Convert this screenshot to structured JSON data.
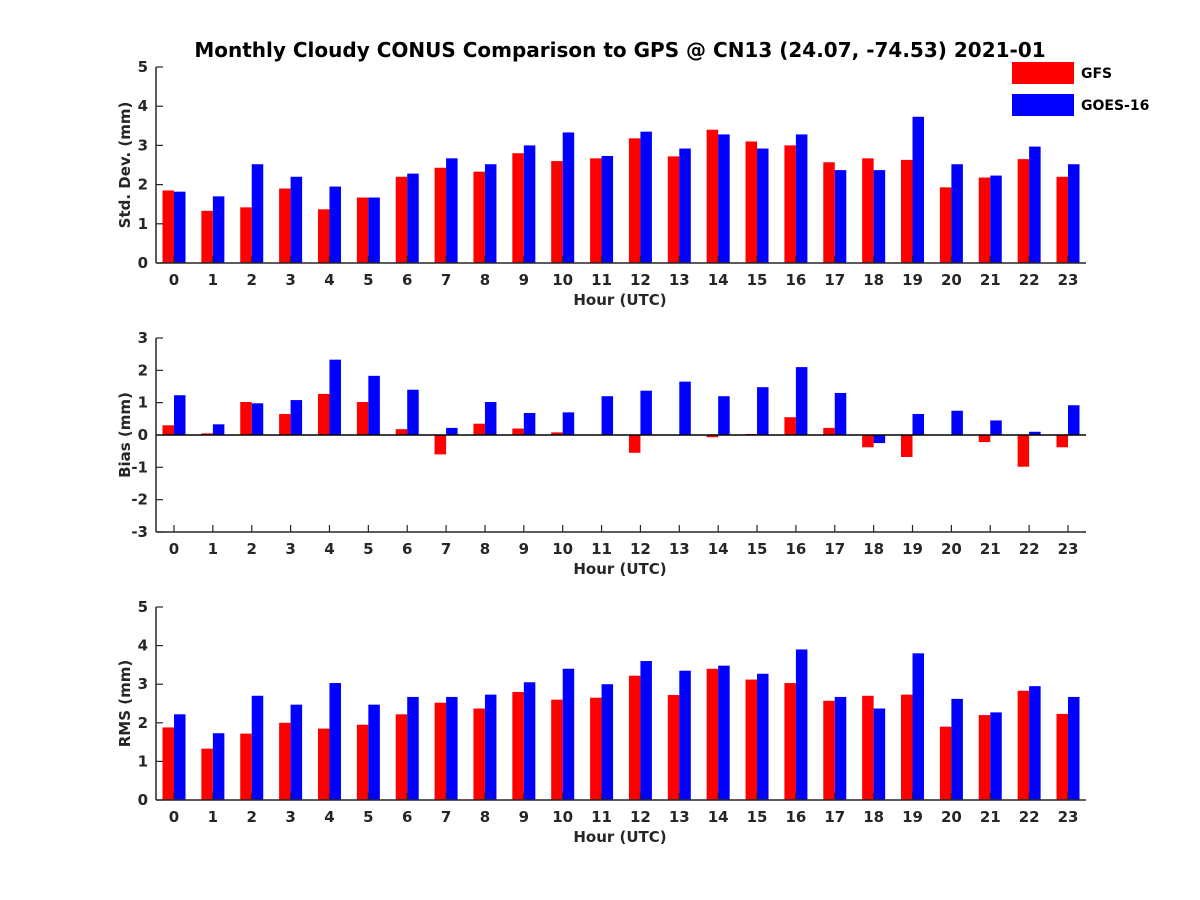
{
  "figure_title": "Monthly Cloudy CONUS Comparison to GPS @ CN13 (24.07, -74.53) 2021-01",
  "colors": {
    "GFS": "#ff0000",
    "GOES-16": "#0000ff"
  },
  "legend": {
    "placement": "top-right",
    "entries": [
      "GFS",
      "GOES-16"
    ]
  },
  "chart_data": [
    {
      "type": "bar",
      "xlabel": "Hour (UTC)",
      "ylabel": "Std. Dev. (mm)",
      "ylim": [
        0,
        5
      ],
      "yticks": [
        0,
        1,
        2,
        3,
        4,
        5
      ],
      "categories": [
        "0",
        "1",
        "2",
        "3",
        "4",
        "5",
        "6",
        "7",
        "8",
        "9",
        "10",
        "11",
        "12",
        "13",
        "14",
        "15",
        "16",
        "17",
        "18",
        "19",
        "20",
        "21",
        "22",
        "23"
      ],
      "series": [
        {
          "name": "GFS",
          "values": [
            1.85,
            1.33,
            1.42,
            1.9,
            1.37,
            1.67,
            2.2,
            2.43,
            2.33,
            2.8,
            2.6,
            2.67,
            3.18,
            2.72,
            3.4,
            3.1,
            3.0,
            2.57,
            2.67,
            2.63,
            1.93,
            2.18,
            2.65,
            2.2
          ]
        },
        {
          "name": "GOES-16",
          "values": [
            1.82,
            1.7,
            2.52,
            2.2,
            1.95,
            1.67,
            2.28,
            2.67,
            2.52,
            3.0,
            3.33,
            2.73,
            3.35,
            2.92,
            3.28,
            2.92,
            3.28,
            2.37,
            2.37,
            3.73,
            2.52,
            2.23,
            2.97,
            2.52
          ]
        }
      ]
    },
    {
      "type": "bar",
      "xlabel": "Hour (UTC)",
      "ylabel": "Bias (mm)",
      "ylim": [
        -3,
        3
      ],
      "yticks": [
        -3,
        -2,
        -1,
        0,
        1,
        2,
        3
      ],
      "categories": [
        "0",
        "1",
        "2",
        "3",
        "4",
        "5",
        "6",
        "7",
        "8",
        "9",
        "10",
        "11",
        "12",
        "13",
        "14",
        "15",
        "16",
        "17",
        "18",
        "19",
        "20",
        "21",
        "22",
        "23"
      ],
      "series": [
        {
          "name": "GFS",
          "values": [
            0.3,
            0.05,
            1.02,
            0.65,
            1.27,
            1.02,
            0.18,
            -0.6,
            0.35,
            0.2,
            0.08,
            0.0,
            -0.55,
            0.0,
            -0.07,
            0.03,
            0.55,
            0.22,
            -0.38,
            -0.68,
            0.0,
            -0.22,
            -0.98,
            -0.38
          ]
        },
        {
          "name": "GOES-16",
          "values": [
            1.23,
            0.33,
            0.98,
            1.08,
            2.33,
            1.83,
            1.4,
            0.22,
            1.02,
            0.68,
            0.7,
            1.2,
            1.37,
            1.65,
            1.2,
            1.48,
            2.1,
            1.3,
            -0.25,
            0.65,
            0.75,
            0.45,
            0.1,
            0.92
          ]
        }
      ]
    },
    {
      "type": "bar",
      "xlabel": "Hour (UTC)",
      "ylabel": "RMS (mm)",
      "ylim": [
        0,
        5
      ],
      "yticks": [
        0,
        1,
        2,
        3,
        4,
        5
      ],
      "categories": [
        "0",
        "1",
        "2",
        "3",
        "4",
        "5",
        "6",
        "7",
        "8",
        "9",
        "10",
        "11",
        "12",
        "13",
        "14",
        "15",
        "16",
        "17",
        "18",
        "19",
        "20",
        "21",
        "22",
        "23"
      ],
      "series": [
        {
          "name": "GFS",
          "values": [
            1.88,
            1.33,
            1.72,
            2.0,
            1.85,
            1.95,
            2.22,
            2.52,
            2.37,
            2.8,
            2.6,
            2.65,
            3.22,
            2.72,
            3.4,
            3.12,
            3.03,
            2.57,
            2.7,
            2.73,
            1.9,
            2.2,
            2.83,
            2.23
          ]
        },
        {
          "name": "GOES-16",
          "values": [
            2.22,
            1.73,
            2.7,
            2.47,
            3.03,
            2.47,
            2.67,
            2.67,
            2.73,
            3.05,
            3.4,
            3.0,
            3.6,
            3.35,
            3.48,
            3.27,
            3.9,
            2.67,
            2.37,
            3.8,
            2.62,
            2.27,
            2.95,
            2.67
          ]
        }
      ]
    }
  ]
}
